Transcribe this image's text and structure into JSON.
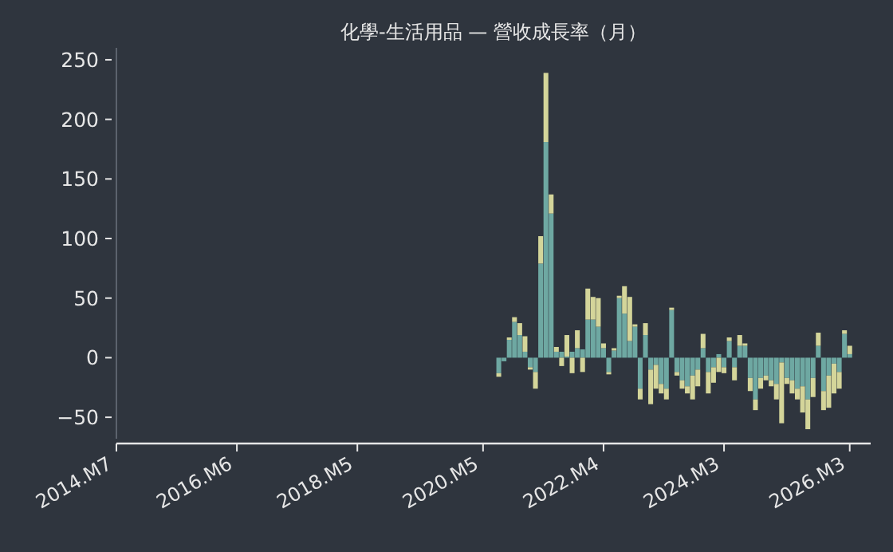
{
  "chart_data": {
    "type": "bar",
    "title": "化學-生活用品 — 營收成長率（月）",
    "x": [
      "2020-08",
      "2020-09",
      "2020-10",
      "2020-11",
      "2020-12",
      "2021-01",
      "2021-02",
      "2021-03",
      "2021-04",
      "2021-05",
      "2021-06",
      "2021-07",
      "2021-08",
      "2021-09",
      "2021-10",
      "2021-11",
      "2021-12",
      "2022-01",
      "2022-02",
      "2022-03",
      "2022-04",
      "2022-05",
      "2022-06",
      "2022-07",
      "2022-08",
      "2022-09",
      "2022-10",
      "2022-11",
      "2022-12",
      "2023-01",
      "2023-02",
      "2023-03",
      "2023-04",
      "2023-05",
      "2023-06",
      "2023-07",
      "2023-08",
      "2023-09",
      "2023-10",
      "2023-11",
      "2023-12",
      "2024-01",
      "2024-02",
      "2024-03",
      "2024-04",
      "2024-05",
      "2024-06",
      "2024-07",
      "2024-08",
      "2024-09",
      "2024-10",
      "2024-11",
      "2024-12",
      "2025-01",
      "2025-02",
      "2025-03",
      "2025-04",
      "2025-05",
      "2025-06",
      "2025-07",
      "2025-08",
      "2025-09",
      "2025-10",
      "2025-11",
      "2025-12",
      "2026-01",
      "2026-02",
      "2026-03"
    ],
    "series": [
      {
        "color": "#6ea8a2",
        "values": [
          -13,
          -3,
          15,
          30,
          19,
          5,
          -8,
          -12,
          79,
          181,
          121,
          5,
          5,
          1,
          5,
          8,
          7,
          32,
          32,
          26,
          8,
          -12,
          6,
          50,
          37,
          14,
          26,
          -26,
          19,
          -10,
          -6,
          -22,
          -26,
          40,
          -12,
          -19,
          -24,
          -15,
          -10,
          8,
          -12,
          -8,
          3,
          -8,
          14,
          -8,
          10,
          10,
          -17,
          -35,
          -17,
          -15,
          -19,
          -22,
          -4,
          -17,
          -19,
          -26,
          -24,
          -35,
          -17,
          10,
          -28,
          -15,
          -5,
          -12,
          20,
          3
        ]
      },
      {
        "color": "#d4d59a",
        "values": [
          -3,
          null,
          2,
          4,
          10,
          13,
          -2,
          -14,
          23,
          58,
          16,
          4,
          -7,
          18,
          -13,
          15,
          -12,
          26,
          19,
          24,
          4,
          -2,
          2,
          2,
          23,
          37,
          2,
          -9,
          10,
          -29,
          -20,
          -8,
          -9,
          2,
          -3,
          -7,
          -6,
          -20,
          -14,
          12,
          -18,
          -13,
          -12,
          -5,
          3,
          -11,
          9,
          2,
          -11,
          -9,
          -9,
          -4,
          -5,
          -13,
          -51,
          -5,
          -11,
          -9,
          -22,
          -25,
          -16,
          11,
          -16,
          -27,
          -25,
          -14,
          3,
          7
        ]
      }
    ],
    "stacked": true,
    "xlim": [
      "2014-07",
      "2026-07"
    ],
    "xticks": [
      {
        "value": "2014-07",
        "label": "2014.M7"
      },
      {
        "value": "2016-06",
        "label": "2016.M6"
      },
      {
        "value": "2018-05",
        "label": "2018.M5"
      },
      {
        "value": "2020-05",
        "label": "2020.M5"
      },
      {
        "value": "2022-04",
        "label": "2022.M4"
      },
      {
        "value": "2024-03",
        "label": "2024.M3"
      },
      {
        "value": "2026-03",
        "label": "2026.M3"
      }
    ],
    "ylim": [
      -68,
      260
    ],
    "yticks": [
      {
        "value": -50,
        "label": "−50"
      },
      0,
      50,
      100,
      150,
      200,
      250
    ]
  }
}
